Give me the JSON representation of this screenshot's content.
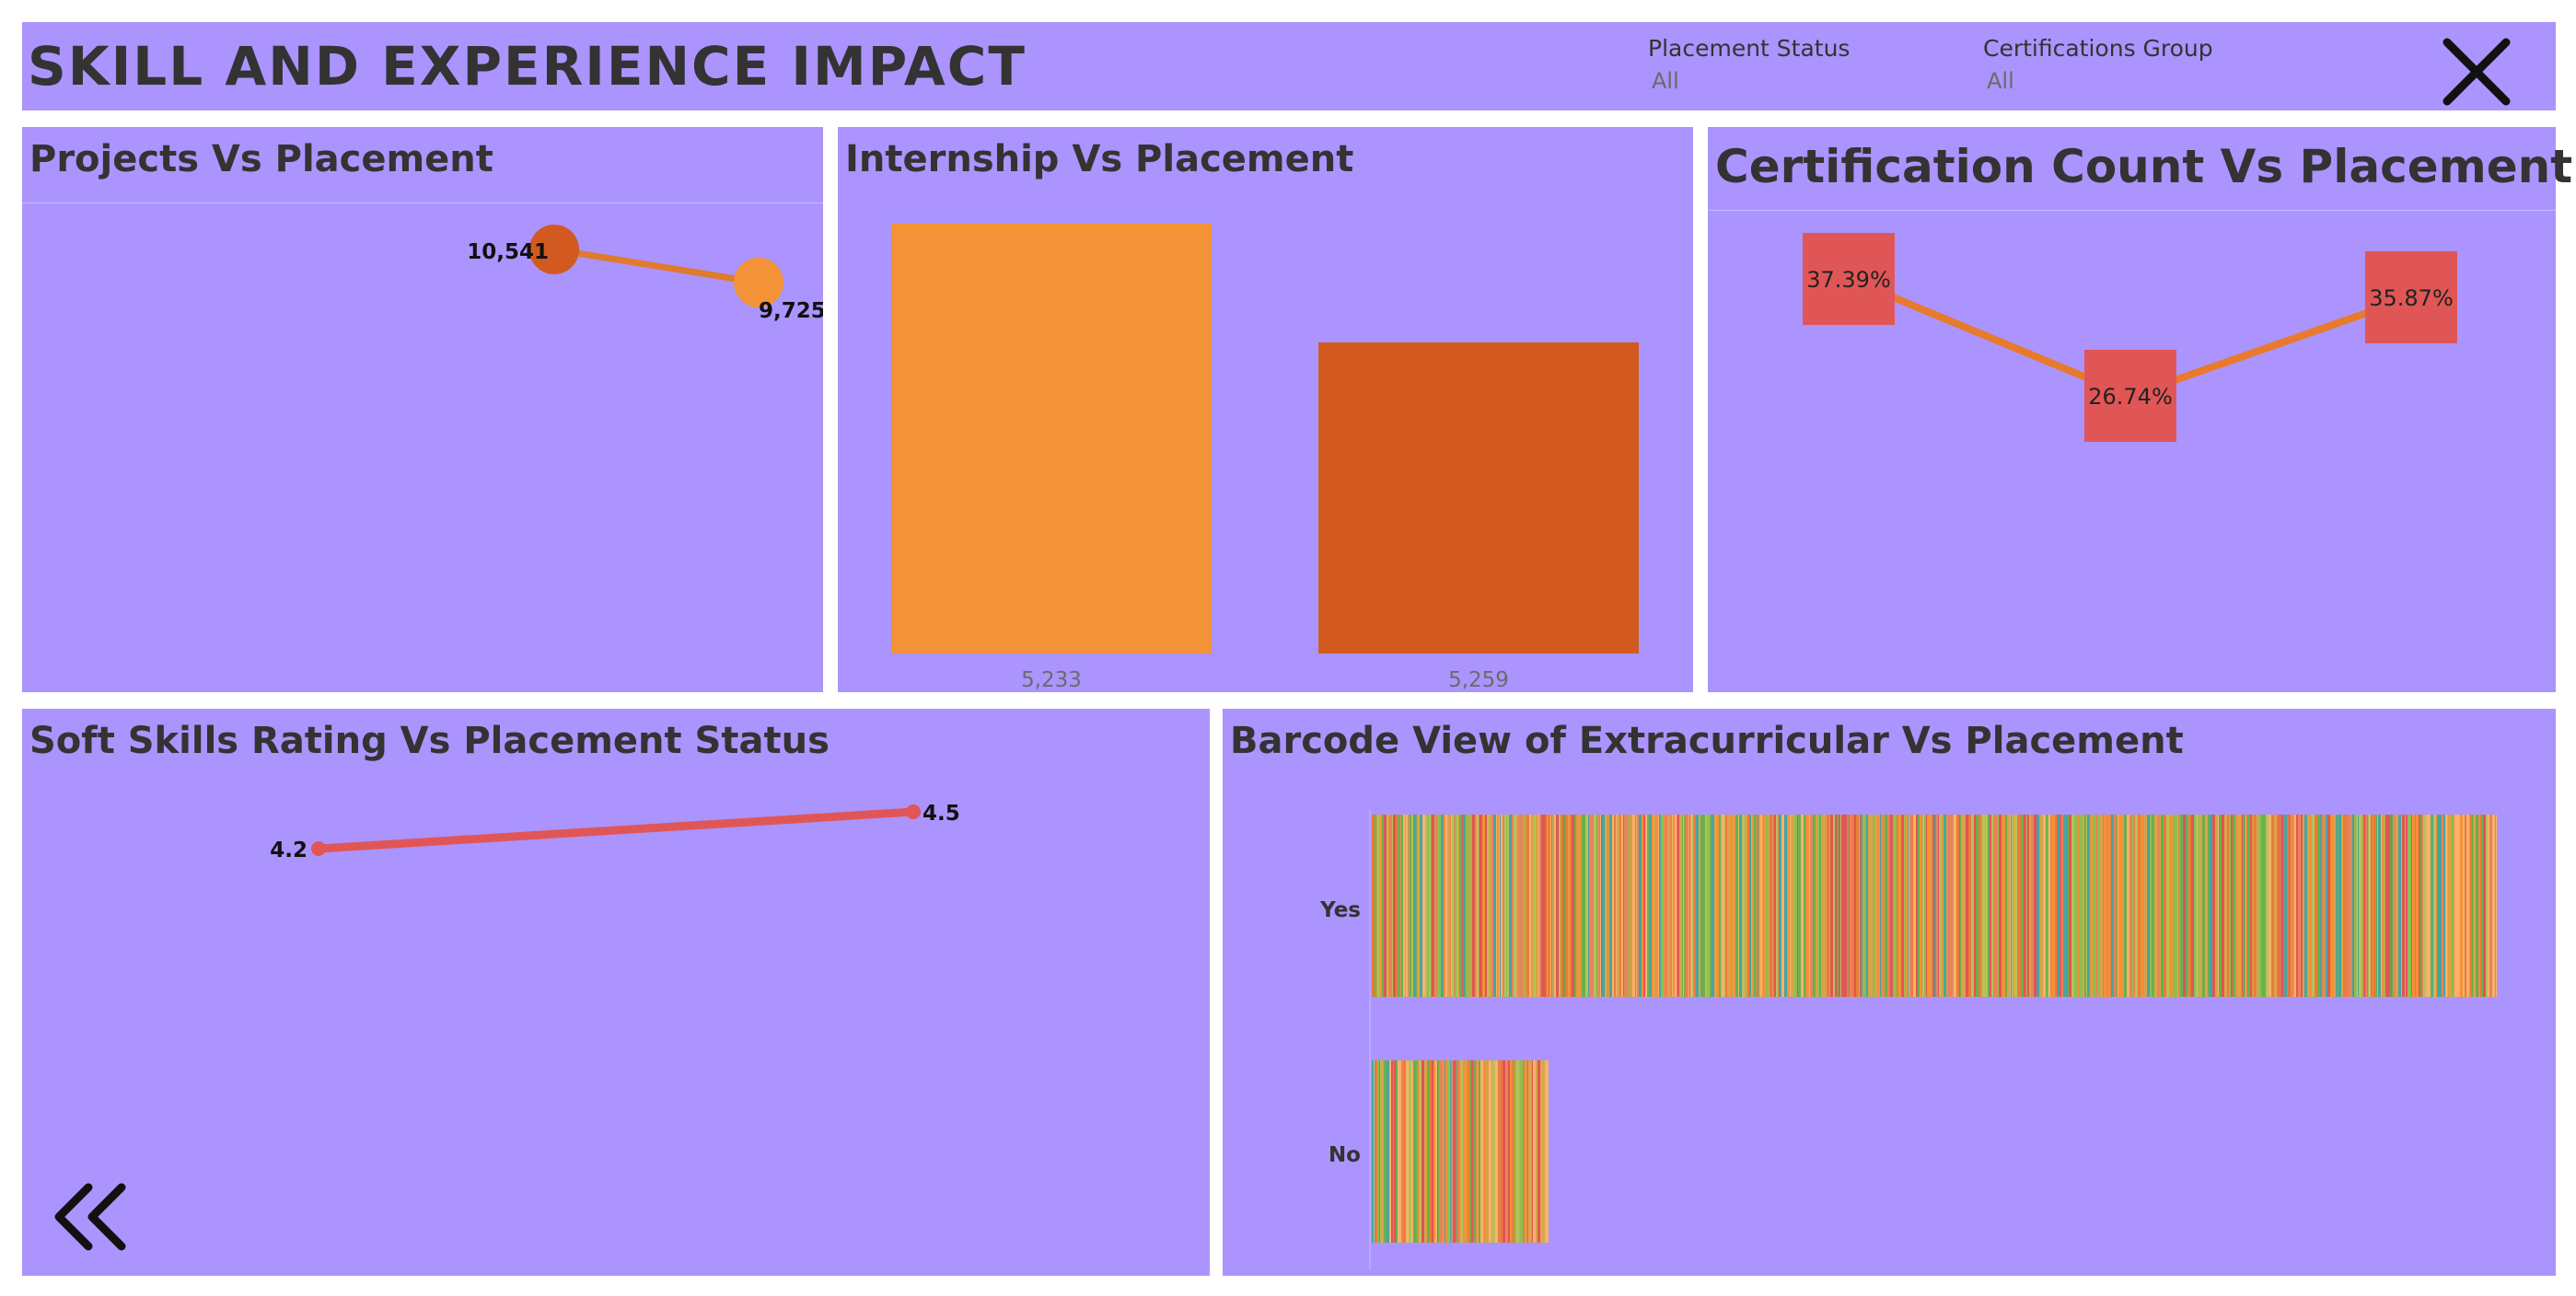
{
  "header": {
    "title": "SKILL AND EXPERIENCE IMPACT"
  },
  "filters": [
    {
      "label": "Placement Status",
      "value": "All"
    },
    {
      "label": "Certifications Group",
      "value": "All"
    }
  ],
  "icons": {
    "close": "close-x-icon",
    "back": "double-chevron-left-icon"
  },
  "colors": {
    "panel_bg": "#ab94fe",
    "orange_light": "#f39236",
    "orange_dark": "#d25a20",
    "red": "#e05656",
    "title_text": "#333333"
  },
  "chart_data": [
    {
      "id": "projects",
      "type": "line",
      "title": "Projects Vs Placement",
      "values": [
        10541,
        9725
      ],
      "labels": [
        "10,541",
        "9,725"
      ]
    },
    {
      "id": "internship",
      "type": "bar",
      "title": "Internship Vs Placement",
      "values": [
        5233,
        5259
      ],
      "labels": [
        "5,233",
        "5,259"
      ]
    },
    {
      "id": "certification",
      "type": "line",
      "title": "Certification Count Vs Placement",
      "values": [
        37.39,
        26.74,
        35.87
      ],
      "labels": [
        "37.39%",
        "26.74%",
        "35.87%"
      ]
    },
    {
      "id": "softskills",
      "type": "line",
      "title": "Soft Skills Rating Vs Placement Status",
      "values": [
        4.2,
        4.5
      ],
      "labels": [
        "4.2",
        "4.5"
      ]
    },
    {
      "id": "barcode",
      "type": "bar",
      "title": "Barcode View of Extracurricular Vs Placement",
      "categories": [
        "Yes",
        "No"
      ]
    }
  ]
}
